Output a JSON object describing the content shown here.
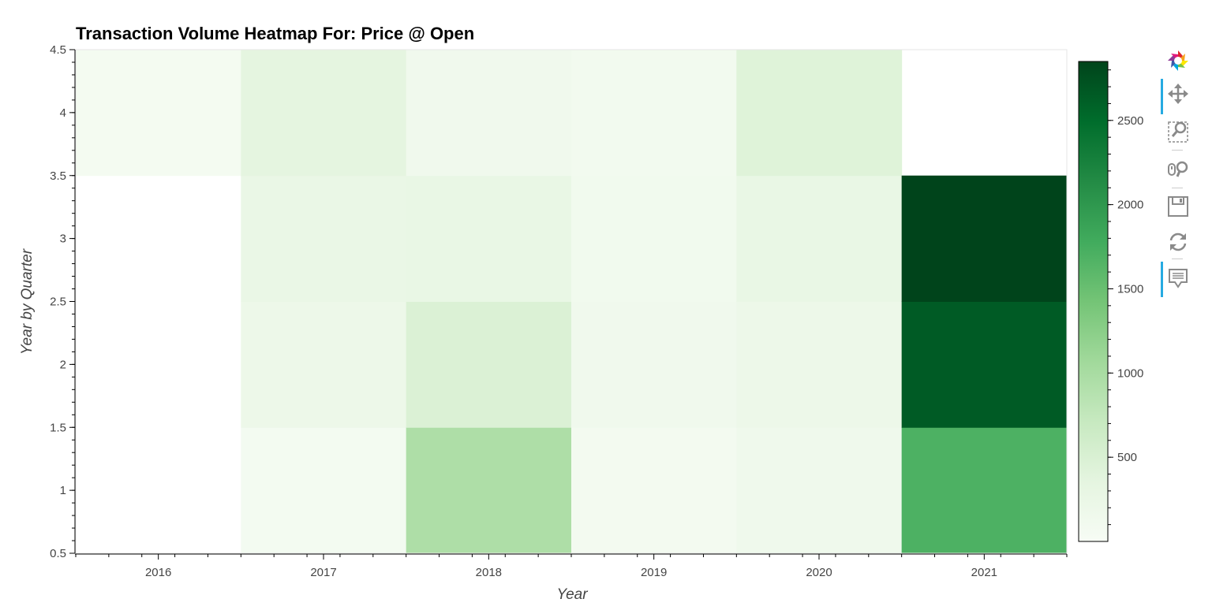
{
  "chart_data": {
    "type": "heatmap",
    "title": "Transaction Volume Heatmap For: Price @ Open",
    "xlabel": "Year",
    "ylabel": "Year by Quarter",
    "x_categories": [
      "2016",
      "2017",
      "2018",
      "2019",
      "2020",
      "2021"
    ],
    "y_categories": [
      1,
      2,
      3,
      4
    ],
    "ylim": [
      0.5,
      4.5
    ],
    "y_ticks": [
      "0.5",
      "1",
      "1.5",
      "2",
      "2.5",
      "3",
      "3.5",
      "4",
      "4.5"
    ],
    "cells": [
      {
        "x": "2016",
        "y": 4,
        "value": 60
      },
      {
        "x": "2017",
        "y": 1,
        "value": 70
      },
      {
        "x": "2017",
        "y": 2,
        "value": 200
      },
      {
        "x": "2017",
        "y": 3,
        "value": 260
      },
      {
        "x": "2017",
        "y": 4,
        "value": 350
      },
      {
        "x": "2018",
        "y": 1,
        "value": 950
      },
      {
        "x": "2018",
        "y": 2,
        "value": 480
      },
      {
        "x": "2018",
        "y": 3,
        "value": 270
      },
      {
        "x": "2018",
        "y": 4,
        "value": 130
      },
      {
        "x": "2019",
        "y": 1,
        "value": 80
      },
      {
        "x": "2019",
        "y": 2,
        "value": 130
      },
      {
        "x": "2019",
        "y": 3,
        "value": 120
      },
      {
        "x": "2019",
        "y": 4,
        "value": 100
      },
      {
        "x": "2020",
        "y": 1,
        "value": 150
      },
      {
        "x": "2020",
        "y": 2,
        "value": 200
      },
      {
        "x": "2020",
        "y": 3,
        "value": 270
      },
      {
        "x": "2020",
        "y": 4,
        "value": 430
      },
      {
        "x": "2021",
        "y": 1,
        "value": 1700
      },
      {
        "x": "2021",
        "y": 2,
        "value": 2650
      },
      {
        "x": "2021",
        "y": 3,
        "value": 2850
      }
    ],
    "colorbar": {
      "range": [
        0,
        2850
      ],
      "ticks": [
        "500",
        "1000",
        "1500",
        "2000",
        "2500"
      ],
      "tick_values": [
        500,
        1000,
        1500,
        2000,
        2500
      ],
      "palette": [
        "#f7fcf5",
        "#e5f5e0",
        "#c7e9c0",
        "#a1d99b",
        "#74c476",
        "#41ab5d",
        "#238b45",
        "#006d2c",
        "#00441b"
      ]
    }
  },
  "toolbar": {
    "logo": "bokeh-logo-icon",
    "tools": [
      {
        "name": "pan-tool",
        "icon": "pan-icon",
        "active": true
      },
      {
        "name": "box-zoom-tool",
        "icon": "box-zoom-icon",
        "active": false
      },
      {
        "name": "wheel-zoom-tool",
        "icon": "wheel-zoom-icon",
        "active": false
      },
      {
        "name": "save-tool",
        "icon": "save-icon",
        "active": false
      },
      {
        "name": "reset-tool",
        "icon": "reset-icon",
        "active": false
      },
      {
        "name": "hover-tool",
        "icon": "hover-icon",
        "active": true
      }
    ]
  }
}
